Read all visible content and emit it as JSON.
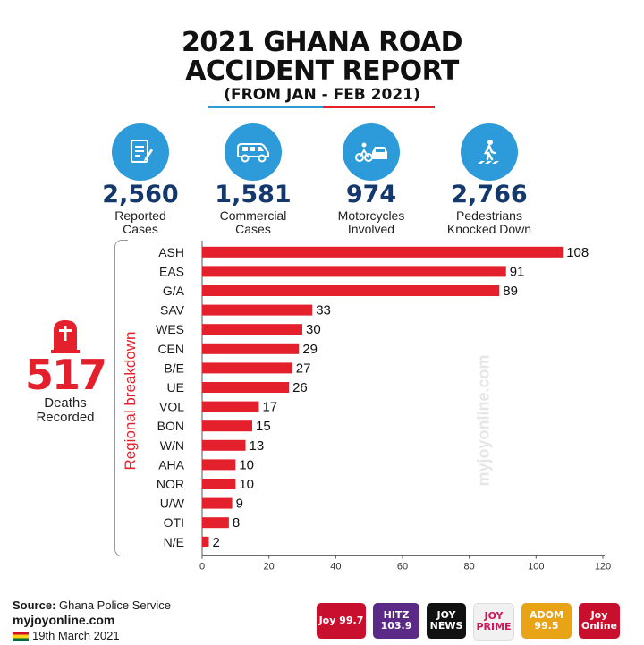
{
  "header": {
    "title_line1": "2021 GHANA ROAD",
    "title_line2": "ACCIDENT REPORT",
    "subtitle": "(FROM JAN - FEB 2021)"
  },
  "stats": [
    {
      "value": "2,560",
      "label1": "Reported",
      "label2": "Cases",
      "icon": "report-icon"
    },
    {
      "value": "1,581",
      "label1": "Commercial",
      "label2": "Cases",
      "icon": "van-icon"
    },
    {
      "value": "974",
      "label1": "Motorcycles",
      "label2": "Involved",
      "icon": "motorcycle-car-crash-icon"
    },
    {
      "value": "2,766",
      "label1": "Pedestrians",
      "label2": "Knocked Down",
      "icon": "pedestrian-crossing-icon"
    }
  ],
  "deaths": {
    "value": "517",
    "label1": "Deaths",
    "label2": "Recorded"
  },
  "region_label": "Regional  breakdown",
  "watermark": "myjoyonline.com",
  "colors": {
    "bar": "#e3202b",
    "accent_blue": "#2d9bd9",
    "number_navy": "#14386b"
  },
  "chart_data": {
    "type": "bar",
    "orientation": "horizontal",
    "categories": [
      "ASH",
      "EAS",
      "G/A",
      "SAV",
      "WES",
      "CEN",
      "B/E",
      "UE",
      "VOL",
      "BON",
      "W/N",
      "AHA",
      "NOR",
      "U/W",
      "OTI",
      "N/E"
    ],
    "values": [
      108,
      91,
      89,
      33,
      30,
      29,
      27,
      26,
      17,
      15,
      13,
      10,
      10,
      9,
      8,
      2
    ],
    "xlim": [
      0,
      120
    ],
    "xticks": [
      0,
      20,
      40,
      60,
      80,
      100,
      120
    ]
  },
  "footer": {
    "source_label": "Source:",
    "source_value": "Ghana Police Service",
    "site": "myjoyonline.com",
    "date": "19th March 2021",
    "logos": [
      "Joy 99.7",
      "HITZ 103.9",
      "JOY NEWS",
      "JOY PRIME",
      "ADOM 99.5",
      "Joy Online"
    ]
  }
}
